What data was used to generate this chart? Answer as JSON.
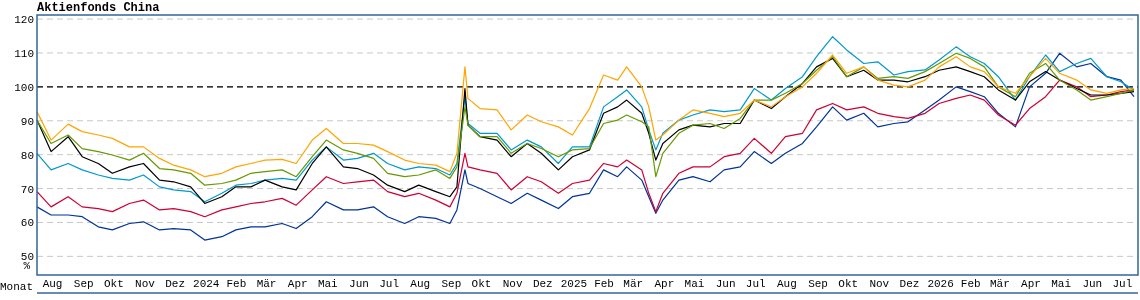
{
  "chart_data": {
    "type": "line",
    "title": "Aktienfonds China",
    "xlabel": "Monat",
    "ylabel": "%",
    "x": [
      "2023-08-01",
      "2023-08-15",
      "2023-09-01",
      "2023-09-15",
      "2023-10-01",
      "2023-10-15",
      "2023-11-01",
      "2023-11-15",
      "2023-12-01",
      "2023-12-15",
      "2024-01-01",
      "2024-01-15",
      "2024-02-01",
      "2024-02-15",
      "2024-03-01",
      "2024-03-15",
      "2024-04-01",
      "2024-04-15",
      "2024-05-01",
      "2024-05-15",
      "2024-06-01",
      "2024-06-15",
      "2024-07-01",
      "2024-07-15",
      "2024-08-01",
      "2024-08-15",
      "2024-09-01",
      "2024-09-15",
      "2024-09-22",
      "2024-09-30",
      "2024-10-03",
      "2024-10-15",
      "2024-11-01",
      "2024-11-15",
      "2024-12-01",
      "2024-12-15",
      "2025-01-01",
      "2025-01-15",
      "2025-02-01",
      "2025-02-15",
      "2025-03-01",
      "2025-03-10",
      "2025-03-25",
      "2025-04-01",
      "2025-04-08",
      "2025-04-15",
      "2025-05-01",
      "2025-05-15",
      "2025-06-01",
      "2025-06-15",
      "2025-07-01",
      "2025-07-15",
      "2025-08-01",
      "2025-08-15",
      "2025-09-01",
      "2025-09-15",
      "2025-10-01",
      "2025-10-15",
      "2025-11-01",
      "2025-11-15",
      "2025-12-01",
      "2025-12-15",
      "2026-01-01",
      "2026-01-15",
      "2026-02-01",
      "2026-02-15",
      "2026-03-01",
      "2026-03-15",
      "2026-04-01",
      "2026-04-15",
      "2026-05-01",
      "2026-05-15",
      "2026-06-01",
      "2026-06-15",
      "2026-07-01",
      "2026-07-15",
      "2026-07-28"
    ],
    "series": [
      {
        "color": "#003399",
        "values": [
          64.6,
          62.2,
          62.2,
          61.7,
          58.7,
          57.8,
          59.7,
          60.2,
          57.8,
          58.2,
          57.8,
          54.8,
          55.8,
          57.8,
          58.7,
          58.7,
          59.7,
          58.2,
          61.7,
          66.1,
          63.7,
          63.7,
          64.6,
          61.7,
          59.7,
          61.7,
          61.2,
          59.7,
          63.7,
          75.5,
          71.5,
          70.0,
          67.6,
          65.6,
          68.6,
          66.6,
          64.1,
          67.6,
          68.6,
          75.5,
          73.5,
          76.4,
          72.5,
          67.6,
          62.7,
          66.6,
          72.5,
          73.5,
          72.0,
          75.5,
          76.4,
          80.9,
          77.4,
          80.4,
          83.3,
          88.2,
          94.1,
          90.2,
          92.2,
          88.2,
          89.2,
          89.7,
          93.2,
          96.1,
          100.0,
          98.6,
          97.1,
          92.2,
          88.2,
          100.0,
          104.0,
          109.9,
          105.9,
          106.9,
          103.0,
          102.0,
          97.1
        ]
      },
      {
        "color": "#cc0033",
        "values": [
          69.1,
          64.6,
          67.6,
          64.6,
          64.1,
          63.2,
          65.6,
          66.6,
          63.7,
          64.1,
          63.2,
          61.7,
          63.7,
          64.6,
          65.6,
          66.1,
          67.1,
          65.1,
          69.6,
          73.5,
          71.5,
          72.0,
          72.5,
          69.1,
          67.6,
          68.6,
          66.6,
          64.6,
          68.6,
          80.4,
          76.4,
          75.5,
          74.5,
          69.6,
          73.5,
          72.0,
          68.6,
          71.5,
          72.5,
          77.4,
          76.4,
          78.4,
          75.5,
          68.6,
          63.2,
          68.6,
          74.5,
          76.4,
          76.4,
          79.4,
          80.4,
          84.8,
          80.4,
          85.3,
          86.3,
          93.2,
          95.1,
          93.2,
          94.1,
          92.2,
          91.2,
          90.7,
          92.2,
          95.1,
          96.6,
          97.6,
          96.1,
          91.7,
          88.7,
          93.6,
          97.1,
          102.0,
          100.0,
          97.1,
          97.6,
          98.6,
          99.1
        ]
      },
      {
        "color": "#0099cc",
        "values": [
          80.4,
          75.5,
          77.4,
          75.5,
          74.0,
          73.0,
          72.5,
          74.0,
          70.5,
          69.6,
          69.1,
          66.1,
          68.6,
          71.0,
          71.5,
          72.5,
          73.0,
          72.5,
          78.4,
          82.3,
          78.4,
          78.9,
          80.4,
          77.4,
          75.5,
          76.4,
          75.9,
          74.0,
          77.4,
          97.1,
          89.2,
          86.3,
          86.3,
          81.4,
          84.3,
          82.3,
          77.4,
          82.3,
          82.3,
          94.1,
          97.1,
          99.1,
          94.1,
          87.3,
          81.4,
          86.3,
          90.2,
          91.7,
          93.2,
          92.7,
          93.2,
          99.5,
          96.1,
          99.5,
          103.0,
          108.9,
          114.8,
          110.9,
          106.9,
          107.4,
          103.5,
          104.5,
          105.0,
          107.9,
          111.8,
          108.9,
          106.9,
          103.0,
          96.1,
          103.0,
          109.4,
          104.5,
          106.9,
          108.4,
          103.0,
          101.5,
          99.1
        ]
      },
      {
        "color": "#000000",
        "values": [
          90.2,
          80.9,
          85.3,
          79.4,
          77.4,
          74.5,
          76.4,
          77.4,
          72.5,
          72.0,
          70.5,
          65.6,
          67.6,
          70.5,
          70.5,
          72.5,
          70.5,
          69.6,
          77.4,
          82.3,
          76.4,
          75.9,
          74.0,
          71.0,
          69.1,
          71.0,
          69.1,
          67.6,
          70.5,
          99.5,
          88.7,
          85.3,
          84.3,
          79.4,
          83.3,
          80.4,
          75.5,
          79.4,
          81.4,
          92.2,
          94.1,
          96.1,
          92.2,
          86.3,
          78.4,
          83.3,
          87.3,
          88.7,
          88.2,
          89.2,
          89.2,
          96.1,
          93.6,
          97.1,
          101.0,
          105.9,
          108.4,
          103.0,
          104.9,
          102.0,
          102.0,
          101.5,
          103.0,
          104.9,
          105.9,
          104.5,
          103.0,
          99.1,
          96.1,
          101.5,
          104.5,
          102.0,
          99.5,
          97.6,
          97.6,
          98.1,
          98.6
        ]
      },
      {
        "color": "#669900",
        "values": [
          90.2,
          83.3,
          85.8,
          81.8,
          80.9,
          79.9,
          78.4,
          80.4,
          75.9,
          75.5,
          74.5,
          71.0,
          71.5,
          72.5,
          74.5,
          75.0,
          75.5,
          73.5,
          79.4,
          84.3,
          81.4,
          80.4,
          78.9,
          74.5,
          73.5,
          74.0,
          75.5,
          73.0,
          76.4,
          94.1,
          88.7,
          85.3,
          85.3,
          80.4,
          83.3,
          81.8,
          79.4,
          81.4,
          81.8,
          89.2,
          90.2,
          91.7,
          89.7,
          88.2,
          73.5,
          80.4,
          86.3,
          88.7,
          89.2,
          87.7,
          90.7,
          96.1,
          96.1,
          98.1,
          101.0,
          104.9,
          108.9,
          103.0,
          105.9,
          102.5,
          103.0,
          102.5,
          104.5,
          106.9,
          109.9,
          108.4,
          105.9,
          100.0,
          97.1,
          104.0,
          106.9,
          102.0,
          99.1,
          96.1,
          97.1,
          98.1,
          99.1
        ]
      },
      {
        "color": "#ffa500",
        "values": [
          92.7,
          84.3,
          89.0,
          86.8,
          85.8,
          84.8,
          82.3,
          82.3,
          78.9,
          76.9,
          75.5,
          73.5,
          74.5,
          76.4,
          77.4,
          78.4,
          78.6,
          77.4,
          84.3,
          87.7,
          83.3,
          83.3,
          82.8,
          80.9,
          78.4,
          77.4,
          76.9,
          75.0,
          80.4,
          105.9,
          96.6,
          93.6,
          93.2,
          87.3,
          91.7,
          89.7,
          88.2,
          85.8,
          93.6,
          103.5,
          102.0,
          105.9,
          100.0,
          94.1,
          84.3,
          85.8,
          90.2,
          93.2,
          92.2,
          91.2,
          92.2,
          96.1,
          94.1,
          97.1,
          100.0,
          104.0,
          109.4,
          104.0,
          105.9,
          102.0,
          100.5,
          100.0,
          102.0,
          105.9,
          108.9,
          105.9,
          104.5,
          100.0,
          98.1,
          103.0,
          108.4,
          104.0,
          102.0,
          99.1,
          98.1,
          99.1,
          99.5
        ]
      }
    ],
    "xlim": [
      "2023-08-01",
      "2026-08-01"
    ],
    "xticks": [
      {
        "value": "2023-08-16",
        "label": "Aug"
      },
      {
        "value": "2023-09-16",
        "label": "Sep"
      },
      {
        "value": "2023-10-16",
        "label": "Okt"
      },
      {
        "value": "2023-11-16",
        "label": "Nov"
      },
      {
        "value": "2023-12-16",
        "label": "Dez"
      },
      {
        "value": "2024-01-16",
        "label": "2024"
      },
      {
        "value": "2024-02-15",
        "label": "Feb"
      },
      {
        "value": "2024-03-16",
        "label": "Mär"
      },
      {
        "value": "2024-04-16",
        "label": "Apr"
      },
      {
        "value": "2024-05-16",
        "label": "Mai"
      },
      {
        "value": "2024-06-16",
        "label": "Jun"
      },
      {
        "value": "2024-07-16",
        "label": "Jul"
      },
      {
        "value": "2024-08-16",
        "label": "Aug"
      },
      {
        "value": "2024-09-16",
        "label": "Sep"
      },
      {
        "value": "2024-10-16",
        "label": "Okt"
      },
      {
        "value": "2024-11-16",
        "label": "Nov"
      },
      {
        "value": "2024-12-16",
        "label": "Dez"
      },
      {
        "value": "2025-01-16",
        "label": "2025"
      },
      {
        "value": "2025-02-15",
        "label": "Feb"
      },
      {
        "value": "2025-03-16",
        "label": "Mär"
      },
      {
        "value": "2025-04-16",
        "label": "Apr"
      },
      {
        "value": "2025-05-16",
        "label": "Mai"
      },
      {
        "value": "2025-06-16",
        "label": "Jun"
      },
      {
        "value": "2025-07-16",
        "label": "Jul"
      },
      {
        "value": "2025-08-16",
        "label": "Aug"
      },
      {
        "value": "2025-09-16",
        "label": "Sep"
      },
      {
        "value": "2025-10-16",
        "label": "Okt"
      },
      {
        "value": "2025-11-16",
        "label": "Nov"
      },
      {
        "value": "2025-12-16",
        "label": "Dez"
      },
      {
        "value": "2026-01-16",
        "label": "2026"
      },
      {
        "value": "2026-02-15",
        "label": "Feb"
      },
      {
        "value": "2026-03-16",
        "label": "Mär"
      },
      {
        "value": "2026-04-16",
        "label": "Apr"
      },
      {
        "value": "2026-05-16",
        "label": "Mai"
      },
      {
        "value": "2026-06-16",
        "label": "Jun"
      },
      {
        "value": "2026-07-16",
        "label": "Jul"
      }
    ],
    "ylim": [
      44.5,
      121.2
    ],
    "yticks": [
      50,
      60,
      70,
      80,
      90,
      100,
      110,
      120
    ],
    "grid": "y",
    "ref_lines": [
      {
        "axis": "y",
        "value": 100,
        "color": "#000000",
        "line_style": "dashed"
      }
    ]
  }
}
